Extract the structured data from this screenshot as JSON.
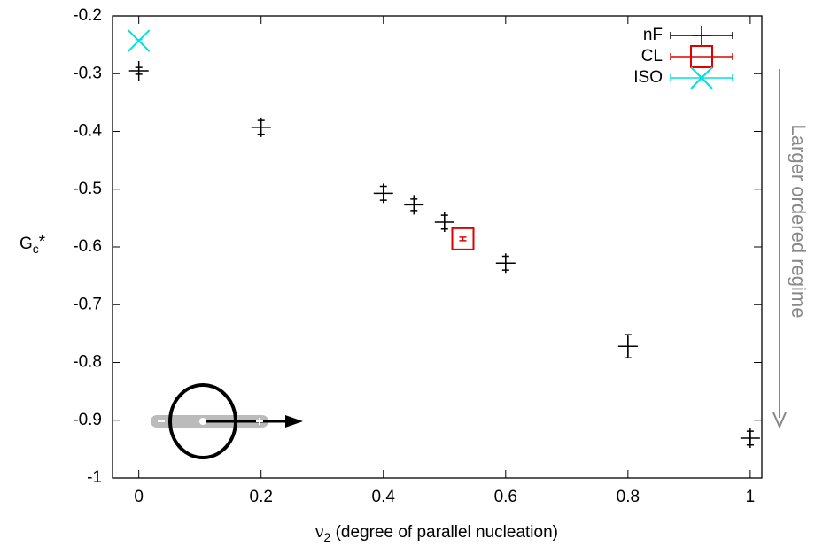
{
  "chart_data": {
    "type": "scatter",
    "x_label": [
      "ν",
      "2",
      " (degree of parallel nucleation)"
    ],
    "y_label": [
      "G",
      "c",
      "*"
    ],
    "annotation": "Larger ordered regime",
    "xlim": [
      -0.043,
      1.019
    ],
    "xticks": [
      0,
      0.2,
      0.4,
      0.6,
      0.8,
      1
    ],
    "ylim": [
      -1,
      -0.2
    ],
    "yticks": [
      -1,
      -0.9,
      -0.8,
      -0.7,
      -0.6,
      -0.5,
      -0.4,
      -0.3,
      -0.2
    ],
    "legend": "upper right",
    "series": [
      {
        "name": "nF",
        "color": "#000000",
        "marker": "plus",
        "x": [
          0,
          0.2,
          0.4,
          0.45,
          0.5,
          0.6,
          0.8,
          1
        ],
        "values": [
          -0.295,
          -0.393,
          -0.507,
          -0.527,
          -0.557,
          -0.628,
          -0.772,
          -0.931
        ],
        "errors": [
          0.006,
          0.012,
          0.012,
          0.01,
          0.012,
          0.012,
          0.02,
          0.012
        ]
      },
      {
        "name": "CL",
        "color": "#e00000",
        "marker": "square",
        "x": [
          0.53
        ],
        "values": [
          -0.586
        ],
        "errors": [
          0.003
        ]
      },
      {
        "name": "ISO",
        "color": "#00e0e0",
        "marker": "cross",
        "x": [
          0
        ],
        "values": [
          -0.243
        ],
        "errors": [
          0.002
        ]
      }
    ]
  }
}
